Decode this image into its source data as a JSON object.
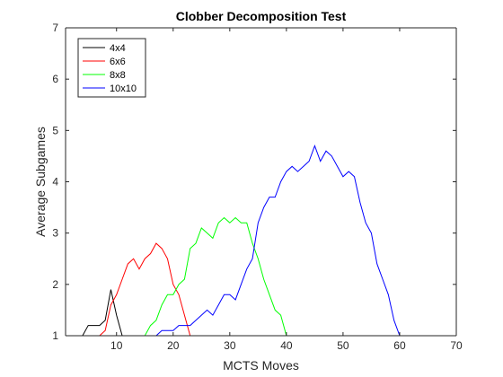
{
  "chart_data": {
    "type": "line",
    "title": "Clobber Decomposition Test",
    "xlabel": "MCTS Moves",
    "ylabel": "Average Subgames",
    "xlim": [
      1,
      70
    ],
    "ylim": [
      1,
      7
    ],
    "xticks": [
      10,
      20,
      30,
      40,
      50,
      60,
      70
    ],
    "yticks": [
      1,
      2,
      3,
      4,
      5,
      6,
      7
    ],
    "grid": false,
    "legend": "top-left",
    "series": [
      {
        "name": "4x4",
        "color": "#000000",
        "x": [
          1,
          2,
          3,
          4,
          5,
          6,
          7,
          8,
          9,
          10,
          11
        ],
        "y": [
          1.0,
          1.0,
          1.0,
          1.0,
          1.2,
          1.2,
          1.2,
          1.3,
          1.9,
          1.4,
          1.0
        ]
      },
      {
        "name": "6x6",
        "color": "#ff0000",
        "x": [
          1,
          2,
          3,
          4,
          5,
          6,
          7,
          8,
          9,
          10,
          11,
          12,
          13,
          14,
          15,
          16,
          17,
          18,
          19,
          20,
          21,
          22,
          23
        ],
        "y": [
          1.0,
          1.0,
          1.0,
          1.0,
          1.0,
          1.0,
          1.0,
          1.1,
          1.6,
          1.8,
          2.1,
          2.4,
          2.5,
          2.3,
          2.5,
          2.6,
          2.8,
          2.7,
          2.5,
          2.0,
          1.8,
          1.4,
          1.0
        ]
      },
      {
        "name": "8x8",
        "color": "#00ff00",
        "x": [
          15,
          16,
          17,
          18,
          19,
          20,
          21,
          22,
          23,
          24,
          25,
          26,
          27,
          28,
          29,
          30,
          31,
          32,
          33,
          34,
          35,
          36,
          37,
          38,
          39,
          40
        ],
        "y": [
          1.0,
          1.2,
          1.3,
          1.6,
          1.8,
          1.8,
          2.0,
          2.1,
          2.7,
          2.8,
          3.1,
          3.0,
          2.9,
          3.2,
          3.3,
          3.2,
          3.3,
          3.2,
          3.2,
          2.8,
          2.5,
          2.1,
          1.8,
          1.5,
          1.4,
          1.0
        ]
      },
      {
        "name": "10x10",
        "color": "#0000ff",
        "x": [
          15,
          16,
          17,
          18,
          19,
          20,
          21,
          22,
          23,
          24,
          25,
          26,
          27,
          28,
          29,
          30,
          31,
          32,
          33,
          34,
          35,
          36,
          37,
          38,
          39,
          40,
          41,
          42,
          43,
          44,
          45,
          46,
          47,
          48,
          49,
          50,
          51,
          52,
          53,
          54,
          55,
          56,
          57,
          58,
          59,
          60
        ],
        "y": [
          1.0,
          1.0,
          1.0,
          1.1,
          1.1,
          1.1,
          1.2,
          1.2,
          1.2,
          1.3,
          1.4,
          1.5,
          1.4,
          1.6,
          1.8,
          1.8,
          1.7,
          2.0,
          2.3,
          2.5,
          3.2,
          3.5,
          3.7,
          3.7,
          4.0,
          4.2,
          4.3,
          4.2,
          4.3,
          4.4,
          4.7,
          4.4,
          4.6,
          4.5,
          4.3,
          4.1,
          4.2,
          4.1,
          3.6,
          3.2,
          3.0,
          2.4,
          2.1,
          1.8,
          1.3,
          1.0
        ]
      }
    ]
  }
}
